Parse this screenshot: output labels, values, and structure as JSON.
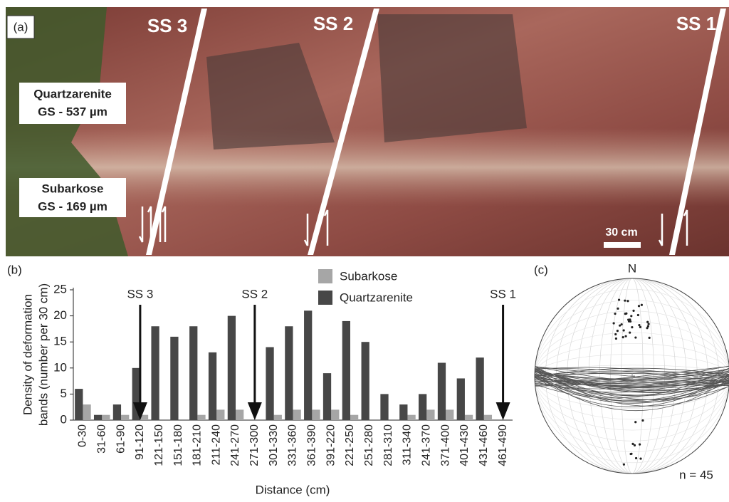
{
  "photo": {
    "panel_label": "(a)",
    "fault_labels": [
      "SS 3",
      "SS 2",
      "SS 1"
    ],
    "boxes": [
      {
        "name": "Quartzarenite",
        "grain_size": "GS - 537 µm"
      },
      {
        "name": "Subarkose",
        "grain_size": "GS - 169 µm"
      }
    ],
    "scale_bar": "30 cm"
  },
  "chart_data": [
    {
      "type": "bar",
      "panel_label": "(b)",
      "x_label": "Distance (cm)",
      "y_label": [
        "Density of deformation",
        "bands (number per 30 cm)"
      ],
      "categories": [
        "0-30",
        "31-60",
        "61-90",
        "91-120",
        "121-150",
        "151-180",
        "181-210",
        "211-240",
        "241-270",
        "271-300",
        "301-330",
        "331-360",
        "361-390",
        "391-220",
        "221-250",
        "251-280",
        "281-310",
        "311-340",
        "241-370",
        "371-400",
        "401-430",
        "431-460",
        "461-490"
      ],
      "series": [
        {
          "name": "Subarkose",
          "color": "#a6a6a6",
          "values": [
            3,
            1,
            1,
            1,
            0,
            0,
            1,
            2,
            2,
            0,
            1,
            2,
            2,
            2,
            1,
            0,
            0,
            1,
            2,
            2,
            1,
            1,
            0
          ]
        },
        {
          "name": "Quartzarenite",
          "color": "#474747",
          "values": [
            6,
            1,
            3,
            10,
            18,
            16,
            18,
            13,
            20,
            0,
            14,
            18,
            21,
            9,
            19,
            15,
            5,
            3,
            5,
            11,
            8,
            12,
            0
          ]
        }
      ],
      "ylim": [
        0,
        25
      ],
      "yticks": [
        0,
        5,
        10,
        15,
        20,
        25
      ],
      "annotations": [
        {
          "text": "SS 3",
          "category": "91-120"
        },
        {
          "text": "SS 2",
          "category": "271-300"
        },
        {
          "text": "SS 1",
          "category": "461-490"
        }
      ]
    },
    {
      "type": "stereonet",
      "panel_label": "(c)",
      "north": "N",
      "count_label": "n = 45"
    }
  ]
}
